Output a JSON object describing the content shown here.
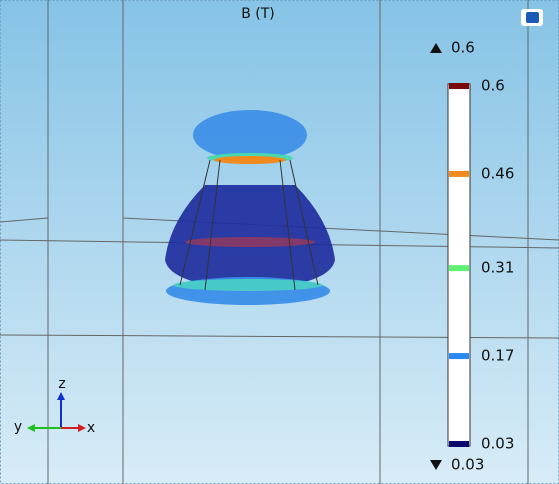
{
  "title": "B (T)",
  "max": 0.6,
  "min": 0.03,
  "colorbar": {
    "ticks": [
      0.6,
      0.46,
      0.31,
      0.17,
      0.03
    ]
  },
  "axes": {
    "z": "z",
    "y": "y",
    "x": "x"
  }
}
